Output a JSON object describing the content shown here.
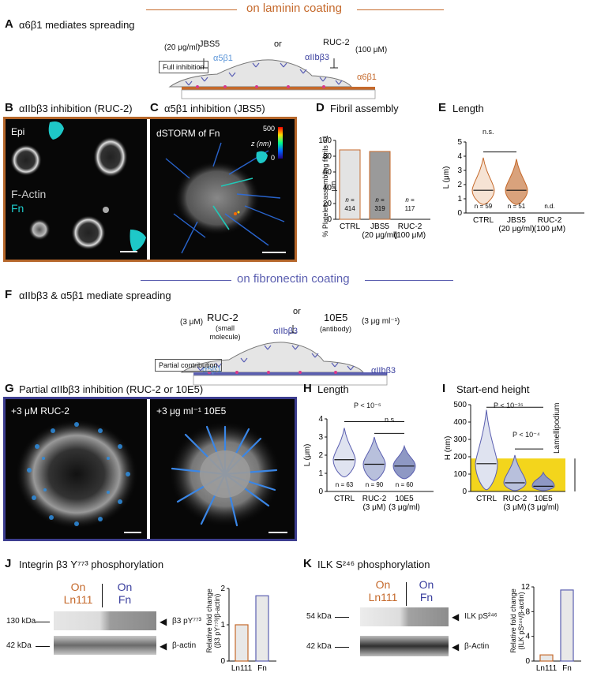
{
  "section_top": {
    "title": "on laminin coating",
    "color": "#c5692b"
  },
  "section_mid": {
    "title": "on fibronectin coating",
    "color": "#5b5fb0"
  },
  "panelA": {
    "letter": "A",
    "title": "α6β1 mediates spreading",
    "box": "Full inhibition",
    "conc_left": "(20 μg/ml)",
    "drug_left": "JBS5",
    "or": "or",
    "drug_right": "RUC-2",
    "conc_right": "(100 μM)",
    "int1": "α5β1",
    "int2": "αIIbβ3",
    "int3": "α6β1"
  },
  "panelB": {
    "letter": "B",
    "title": "αIIbβ3 inhibition (RUC-2)",
    "epi": "Epi",
    "factin": "F-Actin",
    "fn": "Fn"
  },
  "panelC": {
    "letter": "C",
    "title": "α5β1 inhibition (JBS5)",
    "label": "dSTORM of Fn",
    "scale_top": "500",
    "scale_bot": "0",
    "scale_unit": "z (nm)"
  },
  "panelD": {
    "letter": "D",
    "title": "Fibril assembly",
    "ylabel": "% Platelets assembling fibrils >1 μm"
  },
  "panelE": {
    "letter": "E",
    "title": "Length",
    "ylabel": "L (μm)",
    "ns": "n.s."
  },
  "panelF": {
    "letter": "F",
    "title": "αIIbβ3 & α5β1 mediate spreading",
    "box": "Partial contribution",
    "conc_left": "(3 μM)",
    "drug_left": "RUC-2",
    "drug_left_sub1": "(small",
    "drug_left_sub2": "molecule)",
    "or": "or",
    "drug_right": "10E5",
    "drug_right_sub": "(antibody)",
    "conc_right": "(3 μg ml⁻¹)",
    "int1": "α5β1",
    "int2": "αIIbβ3",
    "int3": "αIIbβ3"
  },
  "panelG": {
    "letter": "G",
    "title": "Partial αIIbβ3 inhibition (RUC-2 or 10E5)",
    "img1": "+3 μM RUC-2",
    "img2": "+3 μg ml⁻¹ 10E5"
  },
  "panelH": {
    "letter": "H",
    "title": "Length",
    "ylabel": "L (μm)",
    "p": "P < 10⁻⁵",
    "ns": "n.s."
  },
  "panelI": {
    "letter": "I",
    "title": "Start-end height",
    "ylabel": "H (nm)",
    "p1": "P < 10⁻¹⁵",
    "p2": "P < 10⁻⁴",
    "lam": "Lamellipodium"
  },
  "panelJ": {
    "letter": "J",
    "title": "Integrin β3 Y⁷⁷³ phosphorylation",
    "on1": "On",
    "sub1": "Ln111",
    "on2": "On",
    "sub2": "Fn",
    "kda1": "130 kDa",
    "kda2": "42 kDa",
    "band1": "β3 pY⁷⁷³",
    "band2": "β-actin",
    "ylabel1": "Relative fold change",
    "ylabel2": "(β3 pY⁷⁷³/β-actin)"
  },
  "panelK": {
    "letter": "K",
    "title": "ILK S²⁴⁶ phosphorylation",
    "on1": "On",
    "sub1": "Ln111",
    "on2": "On",
    "sub2": "Fn",
    "kda1": "54 kDa",
    "kda2": "42 kDa",
    "band1": "ILK pS²⁴⁶",
    "band2": "β-Actin",
    "ylabel1": "Relative fold change",
    "ylabel2": "(ILK pS²⁴⁶/β-actin)"
  },
  "chart_data": [
    {
      "id": "D",
      "type": "bar",
      "title": "Fibril assembly",
      "ylabel": "% Platelets assembling fibrils >1 μm",
      "categories": [
        "CTRL",
        "JBS5\n(20 μg/ml)",
        "RUC-2\n(100 μM)"
      ],
      "values": [
        88,
        86,
        0
      ],
      "n_labels": [
        "n = 414",
        "n = 319",
        "n = 117"
      ],
      "ylim": [
        0,
        100
      ],
      "yticks": [
        0,
        20,
        40,
        60,
        80,
        100
      ]
    },
    {
      "id": "E",
      "type": "violin",
      "title": "Length",
      "ylabel": "L (μm)",
      "categories": [
        "CTRL",
        "JBS5\n(20 μg/ml)",
        "RUC-2\n(100 μM)"
      ],
      "medians": [
        1.6,
        1.6,
        null
      ],
      "n_labels": [
        "n = 59",
        "n = 51",
        "n.d."
      ],
      "ylim": [
        0,
        5
      ],
      "yticks": [
        0,
        1,
        2,
        3,
        4,
        5
      ]
    },
    {
      "id": "H",
      "type": "violin",
      "title": "Length",
      "ylabel": "L (μm)",
      "categories": [
        "CTRL",
        "RUC-2\n(3 μM)",
        "10E5\n(3 μg/ml)"
      ],
      "medians": [
        1.75,
        1.5,
        1.4
      ],
      "n_labels": [
        "n = 63",
        "n = 90",
        "n = 60"
      ],
      "ylim": [
        0,
        4
      ],
      "yticks": [
        0,
        1,
        2,
        3,
        4
      ]
    },
    {
      "id": "I",
      "type": "violin",
      "title": "Start-end height",
      "ylabel": "H (nm)",
      "categories": [
        "CTRL",
        "RUC-2\n(3 μM)",
        "10E5\n(3 μg/ml)"
      ],
      "medians": [
        160,
        50,
        30
      ],
      "ylim": [
        0,
        500
      ],
      "yticks": [
        0,
        100,
        200,
        300,
        400,
        500
      ],
      "band": [
        0,
        190
      ]
    },
    {
      "id": "J",
      "type": "bar",
      "ylabel": "Relative fold change (β3 pY⁷⁷³/β-actin)",
      "categories": [
        "Ln111",
        "Fn"
      ],
      "values": [
        1,
        1.8
      ],
      "ylim": [
        0,
        2
      ],
      "yticks": [
        0,
        1,
        2
      ]
    },
    {
      "id": "K",
      "type": "bar",
      "ylabel": "Relative fold change (ILK pS²⁴⁶/β-actin)",
      "categories": [
        "Ln111",
        "Fn"
      ],
      "values": [
        1,
        11.5
      ],
      "ylim": [
        0,
        12
      ],
      "yticks": [
        0,
        4,
        8,
        12
      ]
    }
  ]
}
